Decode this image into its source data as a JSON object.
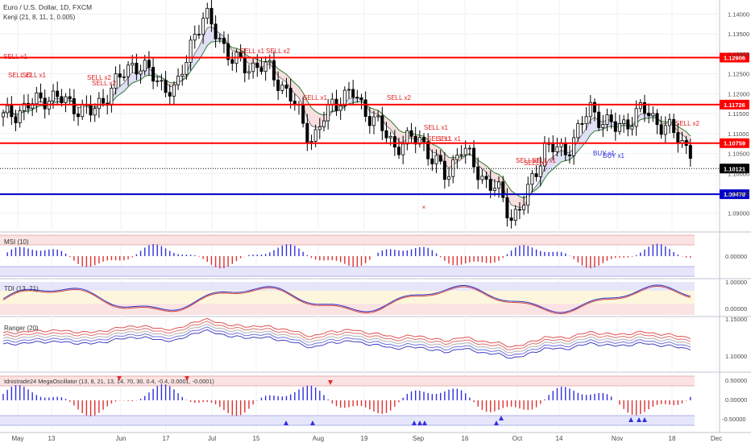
{
  "header": {
    "title": "Euro / U.S. Dollar, 1D, FXCM",
    "indicator": "Kenji (21, 8, 11, 1, 0.005)"
  },
  "colors": {
    "up_candle": "#ffffff",
    "down_candle": "#000000",
    "level_red": "#ff0000",
    "level_blue": "#0000c8",
    "sell_text": "#e02020",
    "buy_text": "#3030e0",
    "osc_pos": "#3030e0",
    "osc_neg": "#e03030",
    "band_pink": "#fbe3e3",
    "band_blue": "#e6e6fb",
    "band_yellow": "#fdf6dc"
  },
  "panes": {
    "msi_title": "MSI (10)",
    "tdi_title": "TDI (13, 21)",
    "ranger_title": "Ranger (20)",
    "mega_title": "Idnistrade24 MegaOscillator (13, 8, 21, 13, 14, 70, 30, 0.4, -0.4, 0.0001, -0.0001)",
    "msi_ticks": [
      "0.00000"
    ],
    "tdi_ticks": [
      "1.00000",
      "0.00000"
    ],
    "ranger_ticks": [
      "1.15000",
      "1.10000"
    ],
    "mega_ticks": [
      "0.50000",
      "0.00000",
      "-0.50000"
    ]
  },
  "signals": {
    "sell_x1": "SELL x1",
    "sell_x2": "SELL x2",
    "buy_x1": "BUY x1",
    "cross": "×"
  },
  "chart_data": {
    "type": "candlestick",
    "symbol": "EURUSD",
    "timeframe": "1D",
    "price_axis": {
      "ticks": [
        "1.14000",
        "1.13500",
        "1.13000",
        "1.12500",
        "1.12000",
        "1.11500",
        "1.11000",
        "1.10500",
        "1.10000",
        "1.09500",
        "1.09000"
      ],
      "range": [
        1.0855,
        1.1435
      ]
    },
    "time_axis": {
      "labels": [
        "May",
        "13",
        "Jun",
        "17",
        "Jul",
        "15",
        "Aug",
        "19",
        "Sep",
        "16",
        "Oct",
        "14",
        "Nov",
        "18",
        "Dec"
      ]
    },
    "levels": [
      {
        "label": "1.12906",
        "value": 1.12906,
        "color": "#ff0000"
      },
      {
        "label": "1.11726",
        "value": 1.11726,
        "color": "#ff0000"
      },
      {
        "label": "1.10759",
        "value": 1.10759,
        "color": "#ff0000"
      },
      {
        "label": "1.10121",
        "value": 1.10121,
        "color": "#000000",
        "style": "dotted"
      },
      {
        "label": "1.09478",
        "value": 1.09478,
        "color": "#0000c8"
      }
    ],
    "current_price": "1.10121",
    "ohlc": []
  }
}
